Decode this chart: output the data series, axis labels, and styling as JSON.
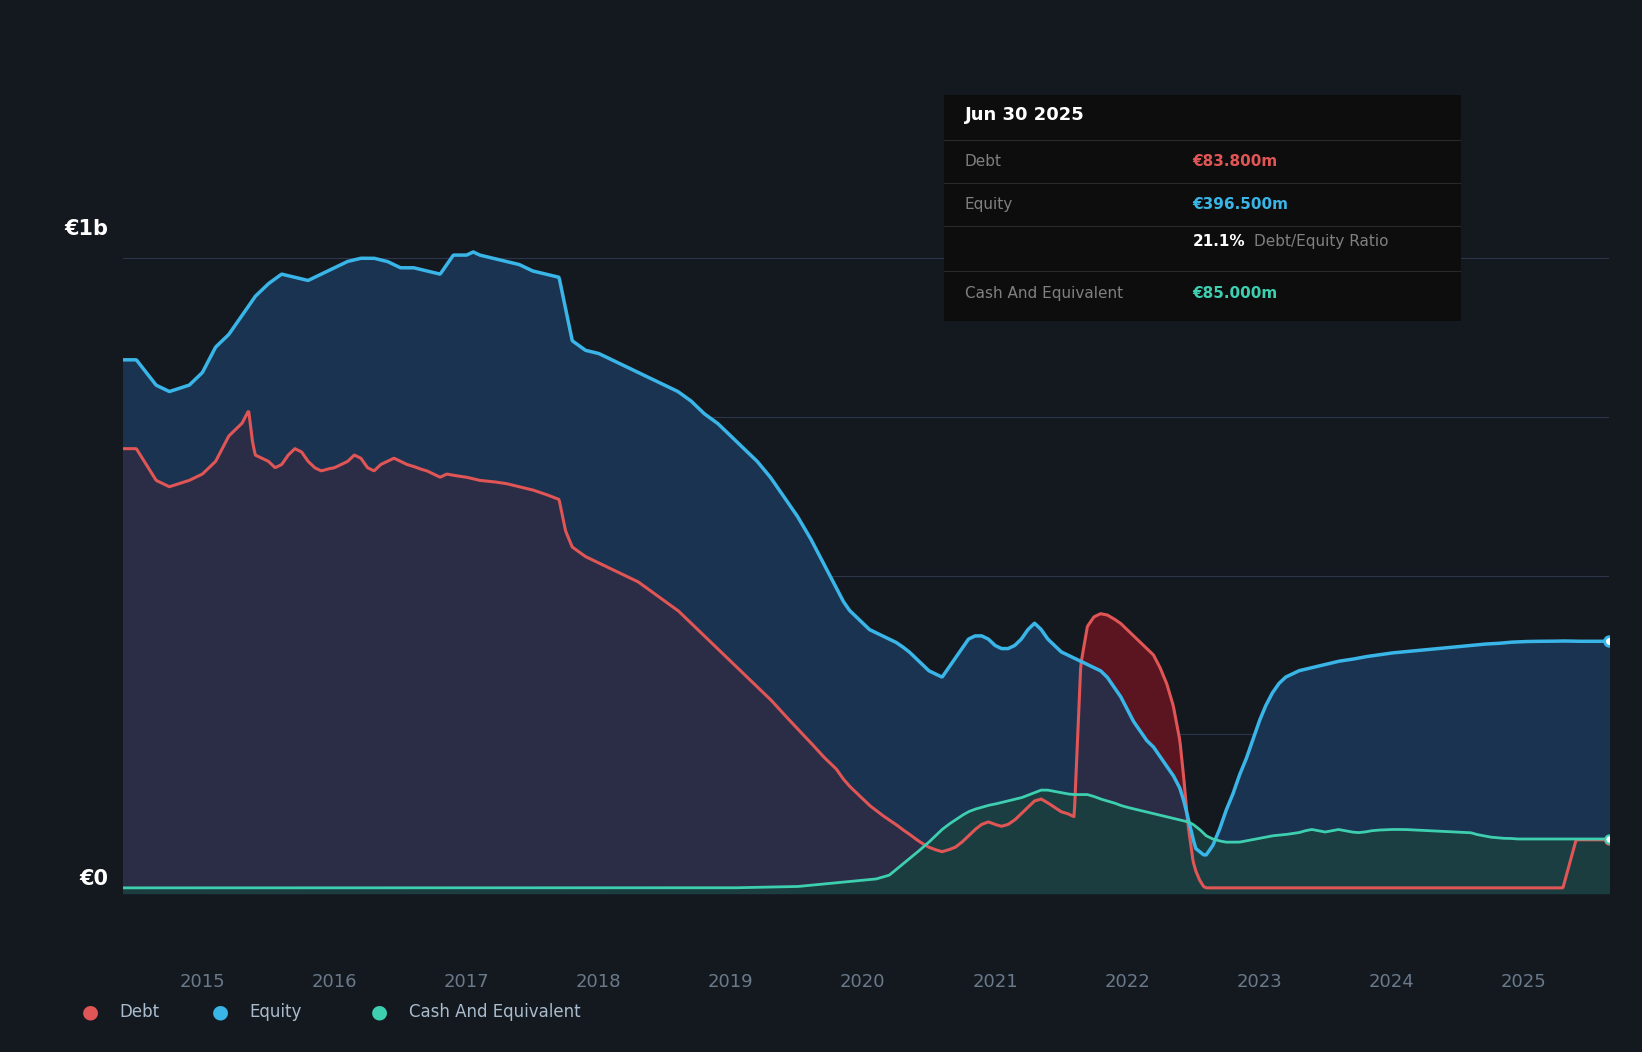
{
  "bg_color": "#141920",
  "plot_bg_color": "#141920",
  "chart_fill_color": "#1e2535",
  "grid_color": "#2d3548",
  "debt_color": "#e05555",
  "equity_color": "#3ab5e8",
  "cash_color": "#3dcfb0",
  "fill_between_color": "#1a3350",
  "fill_debt_above_color": "#5a1520",
  "fill_below_equity_color": "#2a2d45",
  "y_label_1b": "€1b",
  "y_label_0": "€0",
  "x_ticks": [
    2015,
    2016,
    2017,
    2018,
    2019,
    2020,
    2021,
    2022,
    2023,
    2024,
    2025
  ],
  "title_text": "Jun 30 2025",
  "debt_label": "Debt",
  "equity_label": "Equity",
  "cash_label": "Cash And Equivalent",
  "debt_value": "€83.800m",
  "equity_value": "€396.500m",
  "ratio_value": "21.1%",
  "cash_value": "€85.000m",
  "legend_debt": "Debt",
  "legend_equity": "Equity",
  "legend_cash": "Cash And Equivalent",
  "ylim": [
    -60,
    1150
  ],
  "xlim": [
    2014.4,
    2025.65
  ],
  "equity_data": [
    [
      2014.5,
      840
    ],
    [
      2014.65,
      800
    ],
    [
      2014.75,
      790
    ],
    [
      2014.9,
      800
    ],
    [
      2015.0,
      820
    ],
    [
      2015.1,
      860
    ],
    [
      2015.2,
      880
    ],
    [
      2015.3,
      910
    ],
    [
      2015.4,
      940
    ],
    [
      2015.5,
      960
    ],
    [
      2015.6,
      975
    ],
    [
      2015.7,
      970
    ],
    [
      2015.8,
      965
    ],
    [
      2015.9,
      975
    ],
    [
      2016.0,
      985
    ],
    [
      2016.1,
      995
    ],
    [
      2016.2,
      1000
    ],
    [
      2016.3,
      1000
    ],
    [
      2016.4,
      995
    ],
    [
      2016.5,
      985
    ],
    [
      2016.6,
      985
    ],
    [
      2016.7,
      980
    ],
    [
      2016.8,
      975
    ],
    [
      2016.85,
      990
    ],
    [
      2016.9,
      1005
    ],
    [
      2017.0,
      1005
    ],
    [
      2017.05,
      1010
    ],
    [
      2017.1,
      1005
    ],
    [
      2017.2,
      1000
    ],
    [
      2017.3,
      995
    ],
    [
      2017.4,
      990
    ],
    [
      2017.5,
      980
    ],
    [
      2017.6,
      975
    ],
    [
      2017.7,
      970
    ],
    [
      2017.75,
      920
    ],
    [
      2017.8,
      870
    ],
    [
      2017.9,
      855
    ],
    [
      2018.0,
      850
    ],
    [
      2018.1,
      840
    ],
    [
      2018.2,
      830
    ],
    [
      2018.3,
      820
    ],
    [
      2018.4,
      810
    ],
    [
      2018.5,
      800
    ],
    [
      2018.6,
      790
    ],
    [
      2018.7,
      775
    ],
    [
      2018.8,
      755
    ],
    [
      2018.9,
      740
    ],
    [
      2019.0,
      720
    ],
    [
      2019.1,
      700
    ],
    [
      2019.2,
      680
    ],
    [
      2019.3,
      655
    ],
    [
      2019.4,
      625
    ],
    [
      2019.5,
      595
    ],
    [
      2019.6,
      560
    ],
    [
      2019.7,
      520
    ],
    [
      2019.8,
      480
    ],
    [
      2019.85,
      460
    ],
    [
      2019.9,
      445
    ],
    [
      2019.95,
      435
    ],
    [
      2020.0,
      425
    ],
    [
      2020.05,
      415
    ],
    [
      2020.1,
      410
    ],
    [
      2020.15,
      405
    ],
    [
      2020.2,
      400
    ],
    [
      2020.25,
      395
    ],
    [
      2020.3,
      388
    ],
    [
      2020.35,
      380
    ],
    [
      2020.4,
      370
    ],
    [
      2020.45,
      360
    ],
    [
      2020.5,
      350
    ],
    [
      2020.55,
      345
    ],
    [
      2020.6,
      340
    ],
    [
      2020.65,
      355
    ],
    [
      2020.7,
      370
    ],
    [
      2020.75,
      385
    ],
    [
      2020.8,
      400
    ],
    [
      2020.85,
      405
    ],
    [
      2020.9,
      405
    ],
    [
      2020.95,
      400
    ],
    [
      2021.0,
      390
    ],
    [
      2021.05,
      385
    ],
    [
      2021.1,
      385
    ],
    [
      2021.15,
      390
    ],
    [
      2021.2,
      400
    ],
    [
      2021.25,
      415
    ],
    [
      2021.3,
      425
    ],
    [
      2021.35,
      415
    ],
    [
      2021.4,
      400
    ],
    [
      2021.45,
      390
    ],
    [
      2021.5,
      380
    ],
    [
      2021.55,
      375
    ],
    [
      2021.6,
      370
    ],
    [
      2021.65,
      365
    ],
    [
      2021.7,
      360
    ],
    [
      2021.75,
      355
    ],
    [
      2021.8,
      350
    ],
    [
      2021.85,
      340
    ],
    [
      2021.9,
      325
    ],
    [
      2021.95,
      310
    ],
    [
      2022.0,
      290
    ],
    [
      2022.05,
      270
    ],
    [
      2022.1,
      255
    ],
    [
      2022.15,
      240
    ],
    [
      2022.2,
      230
    ],
    [
      2022.25,
      215
    ],
    [
      2022.3,
      200
    ],
    [
      2022.35,
      185
    ],
    [
      2022.4,
      165
    ],
    [
      2022.43,
      145
    ],
    [
      2022.46,
      120
    ],
    [
      2022.5,
      85
    ],
    [
      2022.52,
      70
    ],
    [
      2022.55,
      65
    ],
    [
      2022.58,
      60
    ],
    [
      2022.6,
      60
    ],
    [
      2022.65,
      75
    ],
    [
      2022.7,
      100
    ],
    [
      2022.75,
      130
    ],
    [
      2022.8,
      155
    ],
    [
      2022.85,
      185
    ],
    [
      2022.9,
      210
    ],
    [
      2022.95,
      240
    ],
    [
      2023.0,
      270
    ],
    [
      2023.05,
      295
    ],
    [
      2023.1,
      315
    ],
    [
      2023.15,
      330
    ],
    [
      2023.2,
      340
    ],
    [
      2023.3,
      350
    ],
    [
      2023.4,
      355
    ],
    [
      2023.5,
      360
    ],
    [
      2023.6,
      365
    ],
    [
      2023.7,
      368
    ],
    [
      2023.8,
      372
    ],
    [
      2023.9,
      375
    ],
    [
      2024.0,
      378
    ],
    [
      2024.1,
      380
    ],
    [
      2024.2,
      382
    ],
    [
      2024.3,
      384
    ],
    [
      2024.4,
      386
    ],
    [
      2024.5,
      388
    ],
    [
      2024.6,
      390
    ],
    [
      2024.7,
      392
    ],
    [
      2024.8,
      393
    ],
    [
      2024.9,
      395
    ],
    [
      2025.0,
      396
    ],
    [
      2025.1,
      396.5
    ],
    [
      2025.2,
      396.5
    ],
    [
      2025.3,
      397
    ],
    [
      2025.4,
      396.5
    ],
    [
      2025.5,
      396.5
    ]
  ],
  "debt_data": [
    [
      2014.5,
      700
    ],
    [
      2014.65,
      650
    ],
    [
      2014.75,
      640
    ],
    [
      2014.9,
      650
    ],
    [
      2015.0,
      660
    ],
    [
      2015.1,
      680
    ],
    [
      2015.2,
      720
    ],
    [
      2015.3,
      740
    ],
    [
      2015.35,
      760
    ],
    [
      2015.38,
      710
    ],
    [
      2015.4,
      690
    ],
    [
      2015.5,
      680
    ],
    [
      2015.55,
      670
    ],
    [
      2015.6,
      675
    ],
    [
      2015.65,
      690
    ],
    [
      2015.7,
      700
    ],
    [
      2015.75,
      695
    ],
    [
      2015.8,
      680
    ],
    [
      2015.85,
      670
    ],
    [
      2015.9,
      665
    ],
    [
      2015.95,
      668
    ],
    [
      2016.0,
      670
    ],
    [
      2016.1,
      680
    ],
    [
      2016.15,
      690
    ],
    [
      2016.2,
      685
    ],
    [
      2016.25,
      670
    ],
    [
      2016.3,
      665
    ],
    [
      2016.35,
      675
    ],
    [
      2016.4,
      680
    ],
    [
      2016.45,
      685
    ],
    [
      2016.5,
      680
    ],
    [
      2016.55,
      675
    ],
    [
      2016.6,
      672
    ],
    [
      2016.65,
      668
    ],
    [
      2016.7,
      665
    ],
    [
      2016.75,
      660
    ],
    [
      2016.8,
      655
    ],
    [
      2016.85,
      660
    ],
    [
      2016.9,
      658
    ],
    [
      2017.0,
      655
    ],
    [
      2017.1,
      650
    ],
    [
      2017.2,
      648
    ],
    [
      2017.3,
      645
    ],
    [
      2017.4,
      640
    ],
    [
      2017.5,
      635
    ],
    [
      2017.6,
      628
    ],
    [
      2017.7,
      620
    ],
    [
      2017.75,
      570
    ],
    [
      2017.8,
      545
    ],
    [
      2017.9,
      530
    ],
    [
      2018.0,
      520
    ],
    [
      2018.1,
      510
    ],
    [
      2018.2,
      500
    ],
    [
      2018.3,
      490
    ],
    [
      2018.4,
      475
    ],
    [
      2018.5,
      460
    ],
    [
      2018.6,
      445
    ],
    [
      2018.7,
      425
    ],
    [
      2018.8,
      405
    ],
    [
      2018.9,
      385
    ],
    [
      2019.0,
      365
    ],
    [
      2019.1,
      345
    ],
    [
      2019.2,
      325
    ],
    [
      2019.3,
      305
    ],
    [
      2019.4,
      282
    ],
    [
      2019.5,
      260
    ],
    [
      2019.6,
      238
    ],
    [
      2019.7,
      215
    ],
    [
      2019.8,
      195
    ],
    [
      2019.85,
      180
    ],
    [
      2019.9,
      168
    ],
    [
      2019.95,
      158
    ],
    [
      2020.0,
      148
    ],
    [
      2020.05,
      138
    ],
    [
      2020.1,
      130
    ],
    [
      2020.15,
      122
    ],
    [
      2020.2,
      115
    ],
    [
      2020.25,
      108
    ],
    [
      2020.3,
      100
    ],
    [
      2020.35,
      93
    ],
    [
      2020.4,
      85
    ],
    [
      2020.45,
      78
    ],
    [
      2020.5,
      72
    ],
    [
      2020.55,
      68
    ],
    [
      2020.6,
      65
    ],
    [
      2020.65,
      68
    ],
    [
      2020.7,
      72
    ],
    [
      2020.75,
      80
    ],
    [
      2020.8,
      90
    ],
    [
      2020.85,
      100
    ],
    [
      2020.9,
      108
    ],
    [
      2020.95,
      112
    ],
    [
      2021.0,
      108
    ],
    [
      2021.05,
      105
    ],
    [
      2021.1,
      108
    ],
    [
      2021.15,
      115
    ],
    [
      2021.2,
      125
    ],
    [
      2021.25,
      135
    ],
    [
      2021.3,
      145
    ],
    [
      2021.35,
      148
    ],
    [
      2021.4,
      142
    ],
    [
      2021.45,
      135
    ],
    [
      2021.5,
      128
    ],
    [
      2021.55,
      125
    ],
    [
      2021.6,
      120
    ],
    [
      2021.65,
      360
    ],
    [
      2021.7,
      420
    ],
    [
      2021.75,
      435
    ],
    [
      2021.8,
      440
    ],
    [
      2021.85,
      438
    ],
    [
      2021.9,
      432
    ],
    [
      2021.95,
      425
    ],
    [
      2022.0,
      415
    ],
    [
      2022.05,
      405
    ],
    [
      2022.1,
      395
    ],
    [
      2022.15,
      385
    ],
    [
      2022.2,
      375
    ],
    [
      2022.25,
      355
    ],
    [
      2022.3,
      330
    ],
    [
      2022.35,
      295
    ],
    [
      2022.4,
      240
    ],
    [
      2022.43,
      180
    ],
    [
      2022.46,
      110
    ],
    [
      2022.5,
      50
    ],
    [
      2022.52,
      35
    ],
    [
      2022.55,
      20
    ],
    [
      2022.58,
      10
    ],
    [
      2022.6,
      8
    ],
    [
      2022.65,
      8
    ],
    [
      2022.7,
      8
    ],
    [
      2022.75,
      8
    ],
    [
      2022.8,
      8
    ],
    [
      2022.85,
      8
    ],
    [
      2022.9,
      8
    ],
    [
      2022.95,
      8
    ],
    [
      2023.0,
      8
    ],
    [
      2023.05,
      8
    ],
    [
      2023.1,
      8
    ],
    [
      2023.15,
      8
    ],
    [
      2023.2,
      8
    ],
    [
      2023.3,
      8
    ],
    [
      2023.4,
      8
    ],
    [
      2023.5,
      8
    ],
    [
      2023.6,
      8
    ],
    [
      2023.7,
      8
    ],
    [
      2023.8,
      8
    ],
    [
      2023.9,
      8
    ],
    [
      2024.0,
      8
    ],
    [
      2024.1,
      8
    ],
    [
      2024.2,
      8
    ],
    [
      2024.3,
      8
    ],
    [
      2024.4,
      8
    ],
    [
      2024.5,
      8
    ],
    [
      2024.6,
      8
    ],
    [
      2024.7,
      8
    ],
    [
      2024.8,
      8
    ],
    [
      2024.9,
      8
    ],
    [
      2025.0,
      8
    ],
    [
      2025.1,
      8
    ],
    [
      2025.2,
      8
    ],
    [
      2025.3,
      8
    ],
    [
      2025.4,
      83.8
    ],
    [
      2025.5,
      83.8
    ]
  ],
  "cash_data": [
    [
      2014.5,
      8
    ],
    [
      2015.0,
      8
    ],
    [
      2015.5,
      8
    ],
    [
      2016.0,
      8
    ],
    [
      2016.5,
      8
    ],
    [
      2017.0,
      8
    ],
    [
      2017.5,
      8
    ],
    [
      2018.0,
      8
    ],
    [
      2018.5,
      8
    ],
    [
      2019.0,
      8
    ],
    [
      2019.5,
      10
    ],
    [
      2019.75,
      15
    ],
    [
      2020.0,
      20
    ],
    [
      2020.1,
      22
    ],
    [
      2020.2,
      28
    ],
    [
      2020.3,
      45
    ],
    [
      2020.4,
      62
    ],
    [
      2020.5,
      80
    ],
    [
      2020.6,
      100
    ],
    [
      2020.65,
      108
    ],
    [
      2020.7,
      115
    ],
    [
      2020.75,
      122
    ],
    [
      2020.8,
      128
    ],
    [
      2020.85,
      132
    ],
    [
      2020.9,
      135
    ],
    [
      2020.95,
      138
    ],
    [
      2021.0,
      140
    ],
    [
      2021.1,
      145
    ],
    [
      2021.2,
      150
    ],
    [
      2021.3,
      158
    ],
    [
      2021.35,
      162
    ],
    [
      2021.4,
      162
    ],
    [
      2021.45,
      160
    ],
    [
      2021.5,
      158
    ],
    [
      2021.55,
      156
    ],
    [
      2021.6,
      155
    ],
    [
      2021.65,
      155
    ],
    [
      2021.7,
      155
    ],
    [
      2021.75,
      152
    ],
    [
      2021.8,
      148
    ],
    [
      2021.85,
      145
    ],
    [
      2021.9,
      142
    ],
    [
      2021.95,
      138
    ],
    [
      2022.0,
      135
    ],
    [
      2022.1,
      130
    ],
    [
      2022.2,
      125
    ],
    [
      2022.3,
      120
    ],
    [
      2022.4,
      115
    ],
    [
      2022.46,
      112
    ],
    [
      2022.5,
      108
    ],
    [
      2022.55,
      100
    ],
    [
      2022.6,
      90
    ],
    [
      2022.65,
      85
    ],
    [
      2022.7,
      82
    ],
    [
      2022.75,
      80
    ],
    [
      2022.8,
      80
    ],
    [
      2022.85,
      80
    ],
    [
      2022.9,
      82
    ],
    [
      2022.95,
      84
    ],
    [
      2023.0,
      86
    ],
    [
      2023.1,
      90
    ],
    [
      2023.2,
      92
    ],
    [
      2023.3,
      95
    ],
    [
      2023.35,
      98
    ],
    [
      2023.4,
      100
    ],
    [
      2023.45,
      98
    ],
    [
      2023.5,
      96
    ],
    [
      2023.55,
      98
    ],
    [
      2023.6,
      100
    ],
    [
      2023.65,
      98
    ],
    [
      2023.7,
      96
    ],
    [
      2023.75,
      95
    ],
    [
      2023.8,
      96
    ],
    [
      2023.85,
      98
    ],
    [
      2023.9,
      99
    ],
    [
      2024.0,
      100
    ],
    [
      2024.1,
      100
    ],
    [
      2024.2,
      99
    ],
    [
      2024.3,
      98
    ],
    [
      2024.4,
      97
    ],
    [
      2024.5,
      96
    ],
    [
      2024.6,
      95
    ],
    [
      2024.65,
      92
    ],
    [
      2024.7,
      90
    ],
    [
      2024.75,
      88
    ],
    [
      2024.8,
      87
    ],
    [
      2024.85,
      86
    ],
    [
      2024.9,
      86
    ],
    [
      2024.95,
      85
    ],
    [
      2025.0,
      85
    ],
    [
      2025.1,
      85
    ],
    [
      2025.2,
      85
    ],
    [
      2025.3,
      85
    ],
    [
      2025.4,
      85
    ],
    [
      2025.5,
      85
    ]
  ]
}
